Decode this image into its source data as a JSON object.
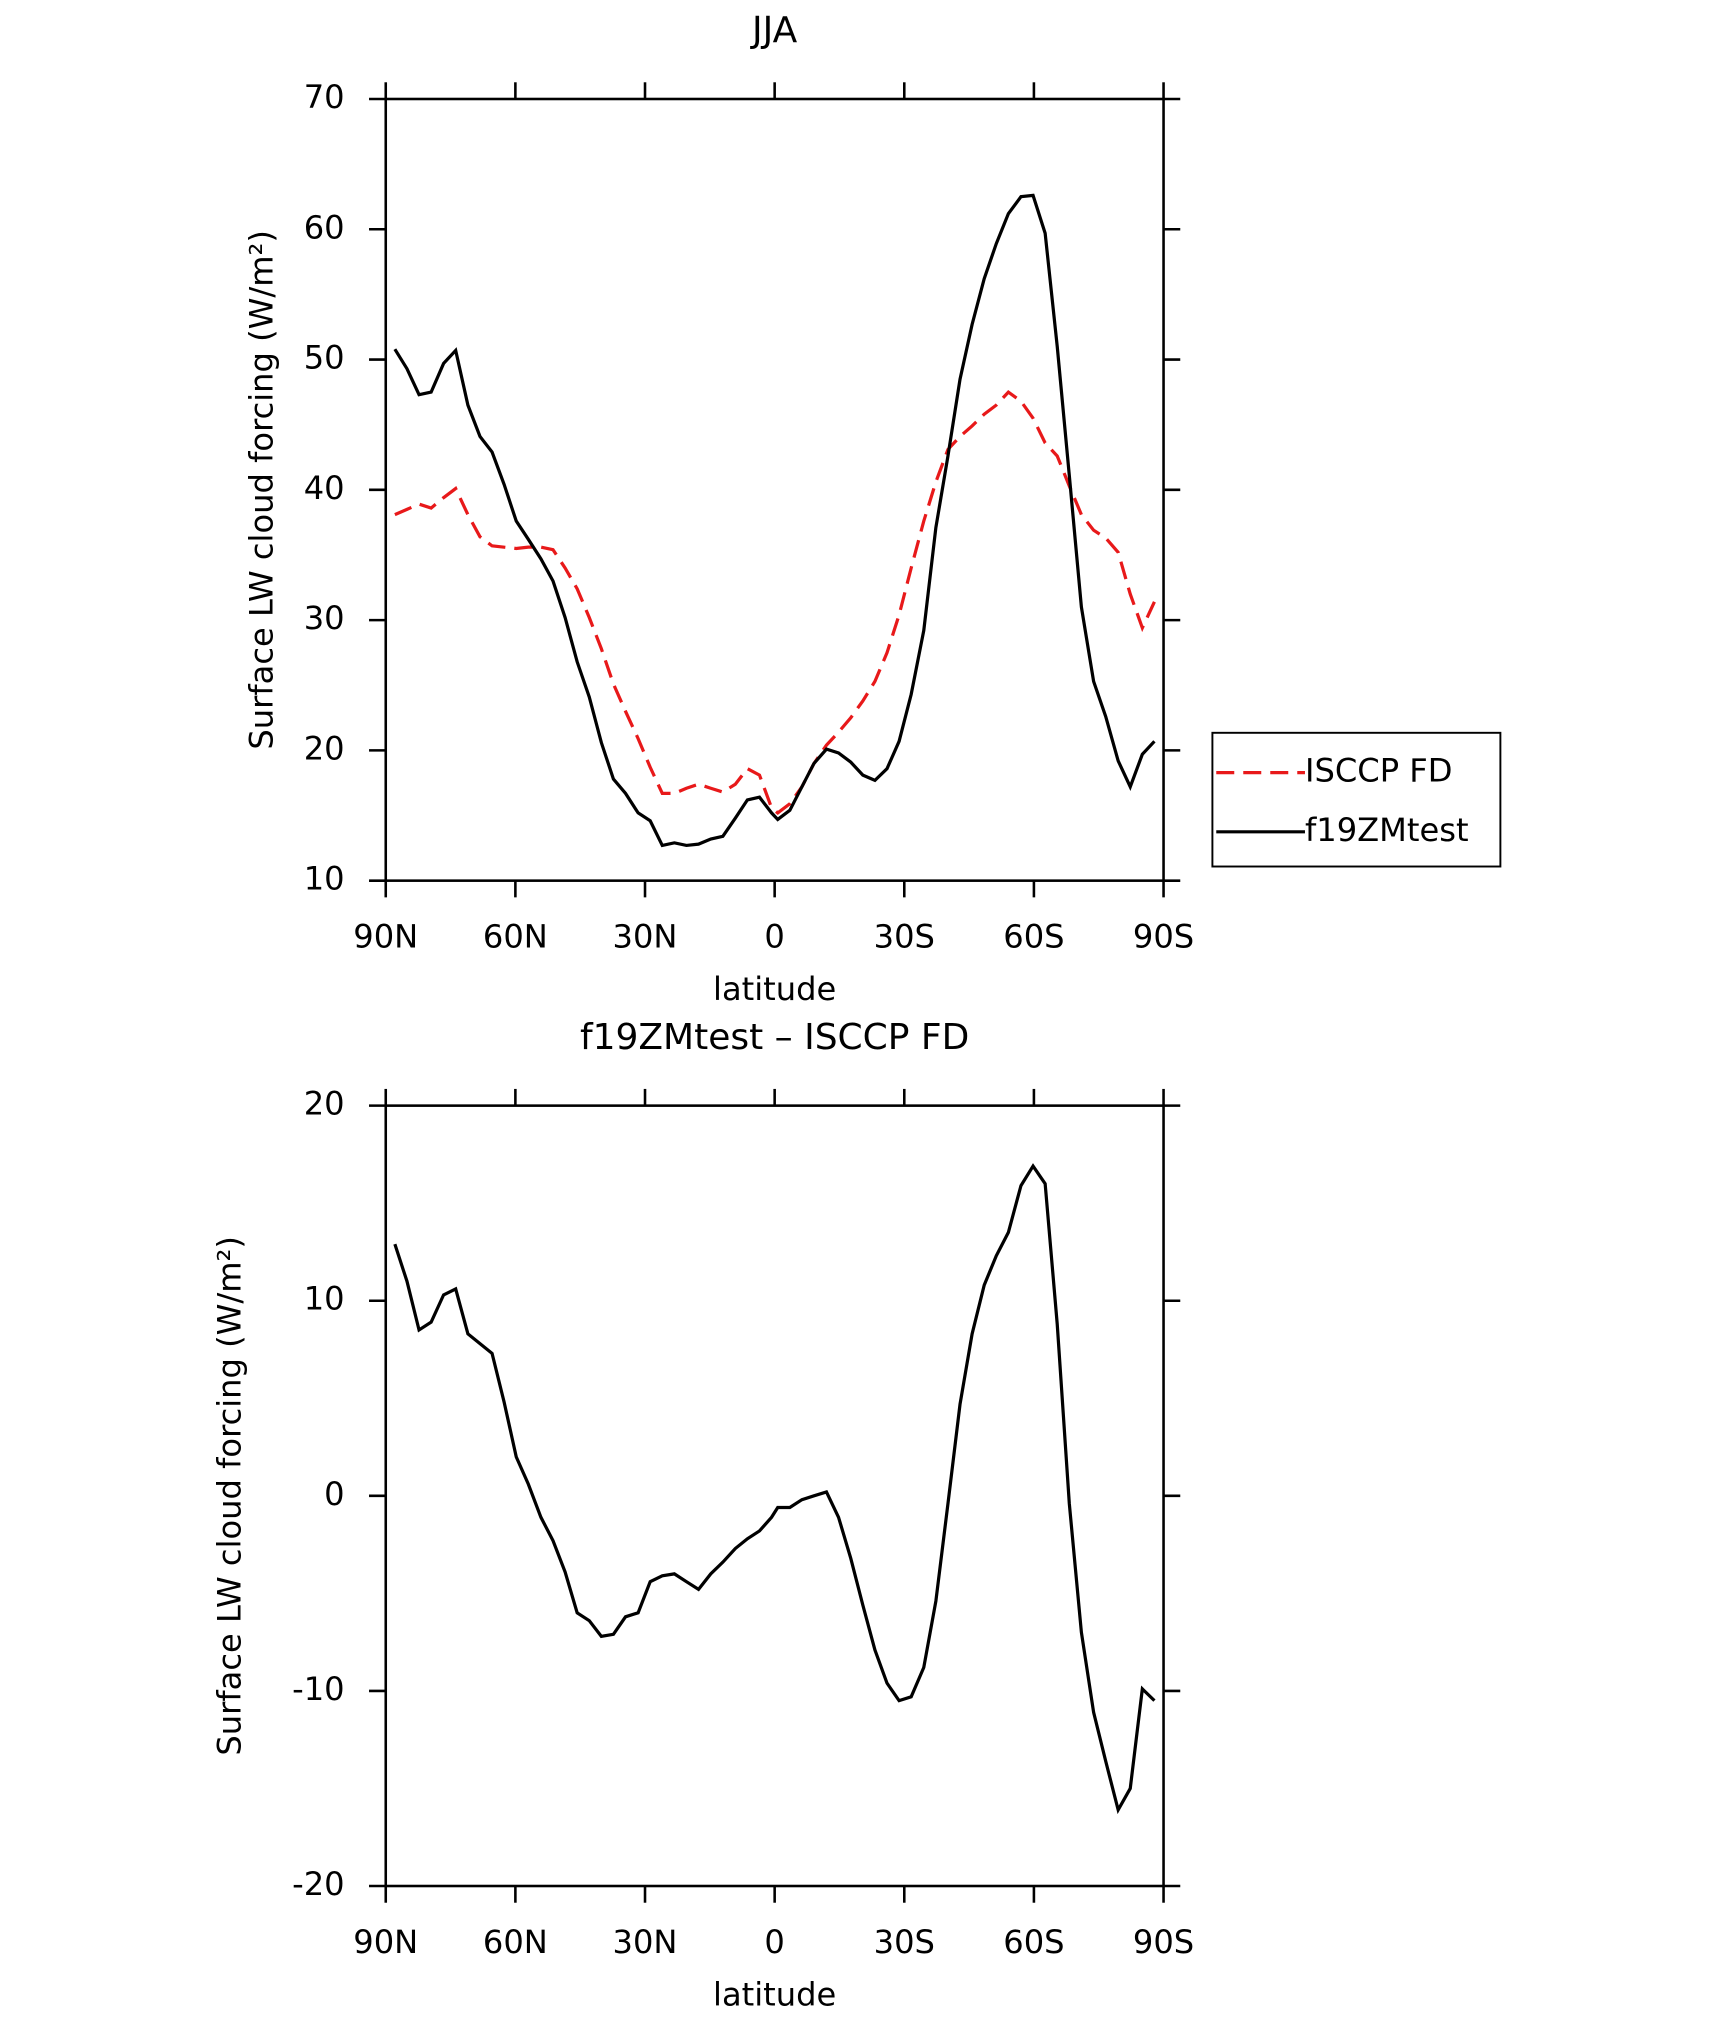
{
  "chart_data": [
    {
      "type": "line",
      "title": "JJA",
      "xlabel": "latitude",
      "ylabel": "Surface LW cloud forcing (W/m²)",
      "x": [
        87.9,
        85.1,
        82.3,
        79.5,
        76.6,
        73.8,
        71.0,
        68.2,
        65.4,
        62.6,
        59.8,
        57.0,
        54.1,
        51.3,
        48.5,
        45.7,
        42.9,
        40.1,
        37.3,
        34.5,
        31.6,
        28.8,
        26.0,
        23.2,
        20.4,
        17.6,
        14.8,
        12.0,
        9.1,
        6.3,
        3.5,
        0.7,
        -0.7,
        -3.5,
        -6.3,
        -9.1,
        -12.0,
        -14.8,
        -17.6,
        -20.4,
        -23.2,
        -26.0,
        -28.8,
        -31.6,
        -34.5,
        -37.3,
        -40.1,
        -42.9,
        -45.7,
        -48.5,
        -51.3,
        -54.1,
        -57.0,
        -59.8,
        -62.6,
        -65.4,
        -68.2,
        -71.0,
        -73.8,
        -76.6,
        -79.5,
        -82.3,
        -85.1,
        -87.9
      ],
      "series": [
        {
          "name": "ISCCP FD",
          "color": "#e8191a",
          "line_style": "dashed",
          "values": [
            38.1,
            38.5,
            38.9,
            38.6,
            39.4,
            40.1,
            38.1,
            36.4,
            35.7,
            35.6,
            35.5,
            35.6,
            35.6,
            35.4,
            34.0,
            32.4,
            30.2,
            27.8,
            25.1,
            23.0,
            20.9,
            18.7,
            16.7,
            16.7,
            17.1,
            17.4,
            17.1,
            16.8,
            17.4,
            18.6,
            18.1,
            15.6,
            15.2,
            15.9,
            17.2,
            19.0,
            20.4,
            21.4,
            22.5,
            23.8,
            25.3,
            27.5,
            30.4,
            34.0,
            37.6,
            40.6,
            43.1,
            44.1,
            44.9,
            45.8,
            46.5,
            47.5,
            46.8,
            45.5,
            43.6,
            42.6,
            40.3,
            38.1,
            36.9,
            36.3,
            35.2,
            32.0,
            29.4,
            31.4
          ]
        },
        {
          "name": "f19ZMtest",
          "color": "#000000",
          "line_style": "solid",
          "values": [
            50.8,
            49.3,
            47.3,
            47.5,
            49.7,
            50.7,
            46.5,
            44.1,
            42.9,
            40.4,
            37.6,
            36.2,
            34.7,
            33.0,
            30.2,
            26.8,
            24.1,
            20.6,
            17.8,
            16.7,
            15.2,
            14.6,
            12.7,
            12.9,
            12.7,
            12.8,
            13.2,
            13.4,
            14.8,
            16.2,
            16.4,
            15.2,
            14.7,
            15.4,
            17.2,
            19.0,
            20.1,
            19.8,
            19.1,
            18.1,
            17.7,
            18.6,
            20.7,
            24.3,
            29.2,
            37.1,
            42.6,
            48.5,
            52.7,
            56.2,
            58.9,
            61.2,
            62.5,
            62.6,
            59.7,
            51.0,
            41.1,
            31.0,
            25.3,
            22.6,
            19.2,
            17.2,
            19.7,
            20.7
          ]
        }
      ],
      "xlim": [
        90,
        -90
      ],
      "xticks": [
        {
          "value": 90,
          "label": "90N"
        },
        {
          "value": 60,
          "label": "60N"
        },
        {
          "value": 30,
          "label": "30N"
        },
        0,
        {
          "value": -30,
          "label": "30S"
        },
        {
          "value": -60,
          "label": "60S"
        },
        {
          "value": -90,
          "label": "90S"
        }
      ],
      "ylim": [
        10,
        70
      ],
      "yticks": [
        10,
        20,
        30,
        40,
        50,
        60,
        70
      ],
      "legend": true,
      "legend_position": "right"
    },
    {
      "type": "line",
      "title": "f19ZMtest – ISCCP FD",
      "xlabel": "latitude",
      "ylabel": "Surface LW cloud forcing (W/m²)",
      "x": [
        87.9,
        85.1,
        82.3,
        79.5,
        76.6,
        73.8,
        71.0,
        68.2,
        65.4,
        62.6,
        59.8,
        57.0,
        54.1,
        51.3,
        48.5,
        45.7,
        42.9,
        40.1,
        37.3,
        34.5,
        31.6,
        28.8,
        26.0,
        23.2,
        20.4,
        17.6,
        14.8,
        12.0,
        9.1,
        6.3,
        3.5,
        0.7,
        -0.7,
        -3.5,
        -6.3,
        -9.1,
        -12.0,
        -14.8,
        -17.6,
        -20.4,
        -23.2,
        -26.0,
        -28.8,
        -31.6,
        -34.5,
        -37.3,
        -40.1,
        -42.9,
        -45.7,
        -48.5,
        -51.3,
        -54.1,
        -57.0,
        -59.8,
        -62.6,
        -65.4,
        -68.2,
        -71.0,
        -73.8,
        -76.6,
        -79.5,
        -82.3,
        -85.1,
        -87.9
      ],
      "series": [
        {
          "color": "#000000",
          "line_style": "solid",
          "values": [
            12.9,
            11.0,
            8.5,
            8.9,
            10.3,
            10.6,
            8.3,
            7.8,
            7.3,
            4.8,
            2.0,
            0.6,
            -1.1,
            -2.3,
            -3.9,
            -6.0,
            -6.4,
            -7.2,
            -7.1,
            -6.2,
            -6.0,
            -4.4,
            -4.1,
            -4.0,
            -4.4,
            -4.8,
            -4.0,
            -3.4,
            -2.7,
            -2.2,
            -1.8,
            -1.1,
            -0.6,
            -0.6,
            -0.2,
            0.0,
            0.2,
            -1.1,
            -3.2,
            -5.6,
            -7.9,
            -9.6,
            -10.5,
            -10.3,
            -8.8,
            -5.4,
            -0.4,
            4.7,
            8.3,
            10.8,
            12.3,
            13.5,
            15.9,
            16.9,
            16.0,
            8.8,
            -0.4,
            -7.0,
            -11.1,
            -13.6,
            -16.1,
            -15.0,
            -9.9,
            -10.5
          ]
        }
      ],
      "xlim": [
        90,
        -90
      ],
      "xticks": [
        {
          "value": 90,
          "label": "90N"
        },
        {
          "value": 60,
          "label": "60N"
        },
        {
          "value": 30,
          "label": "30N"
        },
        0,
        {
          "value": -30,
          "label": "30S"
        },
        {
          "value": -60,
          "label": "60S"
        },
        {
          "value": -90,
          "label": "90S"
        }
      ],
      "ylim": [
        -20,
        20
      ],
      "yticks": [
        -20,
        -10,
        0,
        10,
        20
      ],
      "legend": false
    }
  ]
}
